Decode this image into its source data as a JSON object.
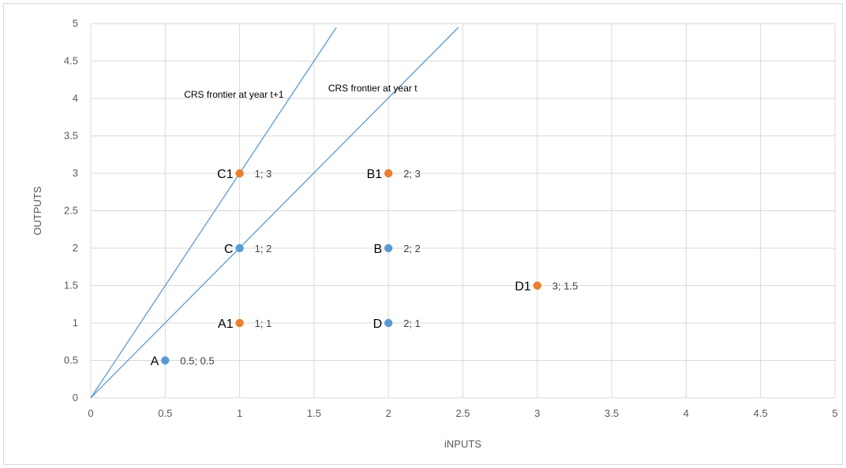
{
  "chart_data": {
    "type": "scatter",
    "title": "",
    "xlabel": "iNPUTS",
    "ylabel": "OUTPUTS",
    "xlim": [
      0,
      5
    ],
    "ylim": [
      0,
      5
    ],
    "xticks": [
      "0",
      "0.5",
      "1",
      "1.5",
      "2",
      "2.5",
      "3",
      "3.5",
      "4",
      "4.5",
      "5"
    ],
    "yticks": [
      "0",
      "0.5",
      "1",
      "1.5",
      "2",
      "2.5",
      "3",
      "3.5",
      "4",
      "4.5",
      "5"
    ],
    "grid": true,
    "colors": {
      "year_t": "#5b9bd5",
      "year_t1": "#ed7d31",
      "frontier": "#5b9bd5",
      "grid": "#d9d9d9"
    },
    "points": [
      {
        "name": "A",
        "x": 0.5,
        "y": 0.5,
        "label": "0.5; 0.5",
        "group": "year_t"
      },
      {
        "name": "C",
        "x": 1,
        "y": 2,
        "label": "1; 2",
        "group": "year_t"
      },
      {
        "name": "B",
        "x": 2,
        "y": 2,
        "label": "2; 2",
        "group": "year_t"
      },
      {
        "name": "D",
        "x": 2,
        "y": 1,
        "label": "2; 1",
        "group": "year_t"
      },
      {
        "name": "A1",
        "x": 1,
        "y": 1,
        "label": "1; 1",
        "group": "year_t1"
      },
      {
        "name": "C1",
        "x": 1,
        "y": 3,
        "label": "1; 3",
        "group": "year_t1"
      },
      {
        "name": "B1",
        "x": 2,
        "y": 3,
        "label": "2; 3",
        "group": "year_t1"
      },
      {
        "name": "D1",
        "x": 3,
        "y": 1.5,
        "label": "3; 1.5",
        "group": "year_t1"
      }
    ],
    "frontiers": [
      {
        "label": "CRS frontier at year t+1",
        "from": [
          0,
          0
        ],
        "to": [
          1.65,
          4.95
        ]
      },
      {
        "label": "CRS frontier at year t",
        "from": [
          0,
          0
        ],
        "to": [
          2.47,
          4.95
        ]
      }
    ]
  }
}
